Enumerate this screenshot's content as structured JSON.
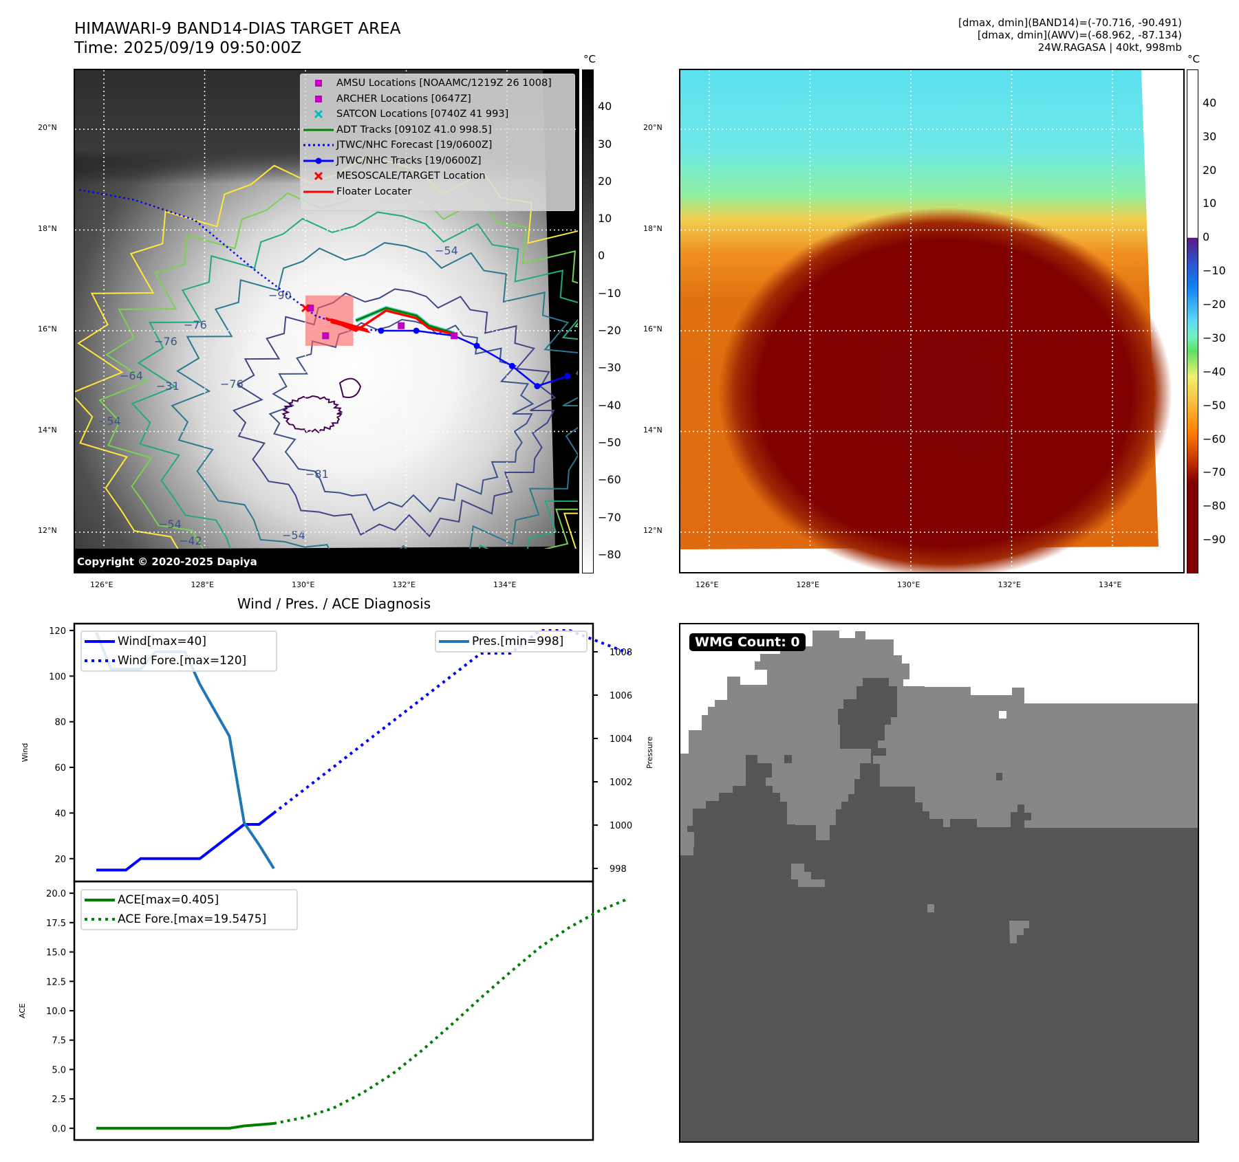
{
  "header": {
    "title_line1": "HIMAWARI-9 BAND14-DIAS TARGET AREA",
    "title_line2": "Time: 2025/09/19 09:50:00Z",
    "stats_line1": "[dmax, dmin](BAND14)=(-70.716, -90.491)",
    "stats_line2": "[dmax, dmin](AWV)=(-68.962, -87.134)",
    "stats_line3": "24W.RAGASA | 40kt, 998mb"
  },
  "maps": {
    "lat_ticks": [
      "20°N",
      "18°N",
      "16°N",
      "14°N",
      "12°N"
    ],
    "lon_ticks": [
      "126°E",
      "128°E",
      "130°E",
      "132°E",
      "134°E"
    ],
    "copyright": "Copyright © 2020-2025 Dapiya",
    "left_colorbar": {
      "unit": "°C",
      "ticks": [
        "40",
        "30",
        "20",
        "10",
        "0",
        "−10",
        "−20",
        "−30",
        "−40",
        "−50",
        "−60",
        "−70",
        "−80"
      ],
      "range": [
        -85,
        50
      ]
    },
    "right_colorbar": {
      "unit": "°C",
      "ticks": [
        "40",
        "30",
        "20",
        "10",
        "0",
        "−10",
        "−20",
        "−30",
        "−40",
        "−50",
        "−60",
        "−70",
        "−80",
        "−90"
      ],
      "range": [
        -100,
        50
      ]
    },
    "contour_labels": [
      "−31",
      "−31",
      "−42",
      "−54",
      "−54",
      "−54",
      "−54",
      "−64",
      "−64",
      "−76",
      "−76",
      "−76",
      "−81",
      "−90"
    ],
    "legend": [
      {
        "symbol": "magenta-square",
        "color": "#bf00bf",
        "label": "AMSU Locations [NOAAMC/1219Z 26 1008]"
      },
      {
        "symbol": "magenta-square",
        "color": "#bf00bf",
        "label": "ARCHER Locations [0647Z]"
      },
      {
        "symbol": "cyan-x",
        "color": "#00bfbf",
        "label": "SATCON Locations [0740Z 41 993]"
      },
      {
        "symbol": "green-line",
        "color": "#008000",
        "label": "ADT Tracks [0910Z 41.0 998.5]"
      },
      {
        "symbol": "blue-dotted-line",
        "color": "#0000ff",
        "label": "JTWC/NHC Forecast [19/0600Z]"
      },
      {
        "symbol": "blue-line-dot",
        "color": "#0000ff",
        "label": "JTWC/NHC Tracks [19/0600Z]"
      },
      {
        "symbol": "red-x",
        "color": "#ff0000",
        "label": "MESOSCALE/TARGET Location"
      },
      {
        "symbol": "red-line",
        "color": "#ff0000",
        "label": "Floater Locater"
      }
    ],
    "jtwc_track": [
      [
        135.2,
        15.1
      ],
      [
        134.6,
        14.9
      ],
      [
        134.1,
        15.3
      ],
      [
        133.4,
        15.7
      ],
      [
        132.95,
        15.9
      ],
      [
        132.2,
        16.0
      ],
      [
        131.5,
        16.0
      ]
    ],
    "jtwc_forecast": [
      [
        131.5,
        16.0
      ],
      [
        130.9,
        16.05
      ],
      [
        130.2,
        16.3
      ],
      [
        129.0,
        17.2
      ],
      [
        127.8,
        18.2
      ],
      [
        126.6,
        18.6
      ],
      [
        125.5,
        18.8
      ]
    ],
    "adt_track": [
      [
        131.0,
        16.2
      ],
      [
        131.6,
        16.45
      ],
      [
        132.2,
        16.3
      ],
      [
        132.45,
        16.1
      ],
      [
        132.95,
        15.95
      ]
    ],
    "floater_track": [
      [
        130.4,
        16.25
      ],
      [
        131.0,
        16.0
      ],
      [
        131.6,
        16.4
      ],
      [
        132.2,
        16.25
      ],
      [
        132.45,
        16.05
      ],
      [
        132.95,
        15.93
      ]
    ],
    "amsu_points": [
      [
        130.1,
        16.45
      ],
      [
        130.4,
        15.9
      ],
      [
        131.9,
        16.1
      ],
      [
        132.95,
        15.9
      ]
    ],
    "target_location": [
      130.0,
      16.45
    ],
    "target_box": {
      "lon": [
        130.0,
        130.95
      ],
      "lat": [
        15.7,
        16.7
      ]
    }
  },
  "wmg": {
    "badge": "WMG Count: 0"
  },
  "chart_data": [
    {
      "type": "line",
      "title": "Wind / Pres. / ACE Diagnosis",
      "ylabel": "Wind",
      "y2label": "Pressure",
      "ylim": [
        10,
        123
      ],
      "y2lim": [
        997.4,
        1009.3
      ],
      "yticks": [
        "120",
        "100",
        "80",
        "60",
        "40",
        "20"
      ],
      "y2ticks": [
        "1008",
        "1006",
        "1004",
        "1002",
        "1000",
        "998"
      ],
      "series": [
        {
          "name": "Wind[max=40]",
          "axis": "left",
          "style": "solid",
          "color": "#0000ff",
          "x": [
            0,
            1,
            2,
            3,
            4,
            5,
            6,
            7,
            8,
            9,
            10,
            11,
            12
          ],
          "values": [
            15,
            15,
            15,
            20,
            20,
            20,
            20,
            20,
            25,
            30,
            35,
            35,
            40
          ]
        },
        {
          "name": "Wind Fore.[max=120]",
          "axis": "left",
          "style": "dotted",
          "color": "#0000ff",
          "x": [
            12,
            14,
            16,
            18,
            20,
            22,
            24,
            26,
            28,
            30,
            32,
            34,
            36
          ],
          "values": [
            40,
            50,
            60,
            70,
            80,
            90,
            100,
            110,
            110,
            120,
            120,
            115,
            110
          ]
        },
        {
          "name": "Pres.[min=998]",
          "axis": "right",
          "style": "solid",
          "color": "#1f77b4",
          "x": [
            0,
            1,
            2,
            3,
            4,
            5,
            6,
            7,
            8,
            9,
            10,
            11,
            12
          ],
          "values": [
            1008.9,
            1007.2,
            1007.2,
            1007.2,
            1008.0,
            1008.0,
            1008.0,
            1006.5,
            1005.3,
            1004.1,
            1000.1,
            999.1,
            998.0
          ]
        }
      ],
      "legend": {
        "left": [
          "Wind[max=40]",
          "Wind Fore.[max=120]"
        ],
        "right": [
          "Pres.[min=998]"
        ]
      }
    },
    {
      "type": "line",
      "ylabel": "ACE",
      "ylim": [
        -1.0,
        21.0
      ],
      "yticks": [
        "20.0",
        "17.5",
        "15.0",
        "12.5",
        "10.0",
        "7.5",
        "5.0",
        "2.5",
        "0.0"
      ],
      "series": [
        {
          "name": "ACE[max=0.405]",
          "style": "solid",
          "color": "#008000",
          "x": [
            0,
            1,
            2,
            3,
            4,
            5,
            6,
            7,
            8,
            9,
            10,
            11,
            12
          ],
          "values": [
            0,
            0,
            0,
            0,
            0,
            0,
            0,
            0,
            0,
            0,
            0.2,
            0.3,
            0.405
          ]
        },
        {
          "name": "ACE Fore.[max=19.5475]",
          "style": "dotted",
          "color": "#008000",
          "x": [
            12,
            14,
            16,
            18,
            20,
            22,
            24,
            26,
            28,
            30,
            32,
            34,
            36
          ],
          "values": [
            0.405,
            0.9,
            1.7,
            3.0,
            4.6,
            6.6,
            8.8,
            11.1,
            13.3,
            15.4,
            17.1,
            18.5,
            19.5475
          ]
        }
      ]
    }
  ]
}
